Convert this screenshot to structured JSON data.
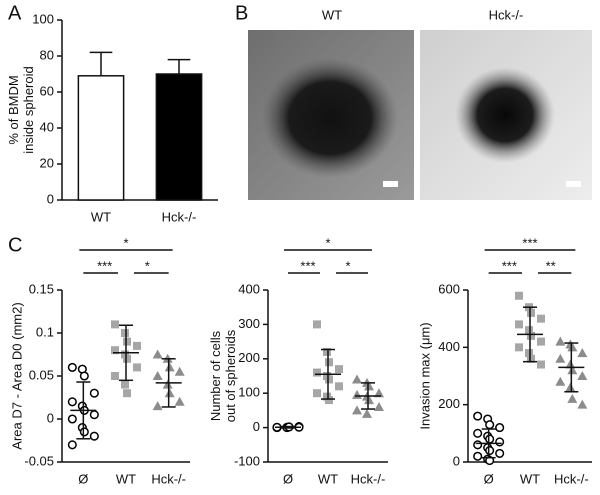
{
  "chart_data": [
    {
      "type": "bar",
      "panel": "A",
      "ylabel": [
        "% of BMDM",
        "inside spheroid"
      ],
      "categories": [
        "WT",
        "Hck-/-"
      ],
      "values": [
        69,
        70
      ],
      "errors": [
        13,
        8
      ],
      "colors": [
        "#ffffff",
        "#000000"
      ],
      "ylim": [
        0,
        100
      ],
      "yticks": [
        0,
        20,
        40,
        60,
        80,
        100
      ]
    },
    {
      "type": "dotplot",
      "panel": "C",
      "ylabel": [
        "Area D7 - Area D0 (mm2)"
      ],
      "categories": [
        "Ø",
        "WT",
        "Hck-/-"
      ],
      "groups": [
        {
          "marker": "circle",
          "color": "#000000",
          "values": [
            0.06,
            0.058,
            0.05,
            0.03,
            0.02,
            0.015,
            0.01,
            0.005,
            0,
            -0.01,
            -0.015,
            -0.02,
            -0.03
          ],
          "mean": 0.01,
          "error": 0.033
        },
        {
          "marker": "square",
          "color": "#a6a6a6",
          "values": [
            0.11,
            0.1,
            0.09,
            0.085,
            0.08,
            0.075,
            0.07,
            0.06,
            0.05,
            0.04,
            0.03
          ],
          "mean": 0.077,
          "error": 0.032
        },
        {
          "marker": "triangle",
          "color": "#8c8c8c",
          "values": [
            0.075,
            0.07,
            0.06,
            0.055,
            0.05,
            0.04,
            0.03,
            0.02,
            0.015
          ],
          "mean": 0.042,
          "error": 0.028
        }
      ],
      "ylim": [
        -0.05,
        0.15
      ],
      "yticks": [
        -0.05,
        0,
        0.05,
        0.1,
        0.15
      ],
      "annotations": [
        "*",
        "***",
        "*"
      ]
    },
    {
      "type": "dotplot",
      "ylabel": [
        "Number of cells",
        "out of spheroids"
      ],
      "categories": [
        "Ø",
        "WT",
        "Hck-/-"
      ],
      "groups": [
        {
          "marker": "circle",
          "color": "#000000",
          "values": [
            0,
            1,
            2,
            3,
            1,
            0,
            2,
            1
          ],
          "mean": 1,
          "error": 2
        },
        {
          "marker": "square",
          "color": "#a6a6a6",
          "values": [
            300,
            220,
            190,
            170,
            160,
            150,
            140,
            120,
            100,
            90,
            80
          ],
          "mean": 155,
          "error": 72
        },
        {
          "marker": "triangle",
          "color": "#8c8c8c",
          "values": [
            140,
            130,
            120,
            100,
            95,
            90,
            80,
            60,
            50,
            40
          ],
          "mean": 92,
          "error": 38
        }
      ],
      "ylim": [
        -100,
        400
      ],
      "yticks": [
        -100,
        0,
        100,
        200,
        300,
        400
      ],
      "annotations": [
        "*",
        "***",
        "*"
      ]
    },
    {
      "type": "dotplot",
      "ylabel": [
        "Invasion max (μm)"
      ],
      "categories": [
        "Ø",
        "WT",
        "Hck-/-"
      ],
      "groups": [
        {
          "marker": "circle",
          "color": "#000000",
          "values": [
            160,
            150,
            130,
            120,
            100,
            90,
            80,
            70,
            60,
            50,
            40,
            30,
            20,
            10,
            5
          ],
          "mean": 65,
          "error": 50
        },
        {
          "marker": "square",
          "color": "#a6a6a6",
          "values": [
            580,
            540,
            520,
            500,
            480,
            460,
            440,
            420,
            400,
            380,
            360,
            340
          ],
          "mean": 445,
          "error": 95
        },
        {
          "marker": "triangle",
          "color": "#8c8c8c",
          "values": [
            420,
            410,
            400,
            380,
            360,
            340,
            320,
            300,
            280,
            260,
            220,
            200
          ],
          "mean": 330,
          "error": 85
        }
      ],
      "ylim": [
        0,
        600
      ],
      "yticks": [
        0,
        200,
        400,
        600
      ],
      "annotations": [
        "***",
        "***",
        "**"
      ]
    }
  ],
  "panel_b": {
    "label": "B",
    "images": [
      "WT",
      "Hck-/-"
    ]
  }
}
